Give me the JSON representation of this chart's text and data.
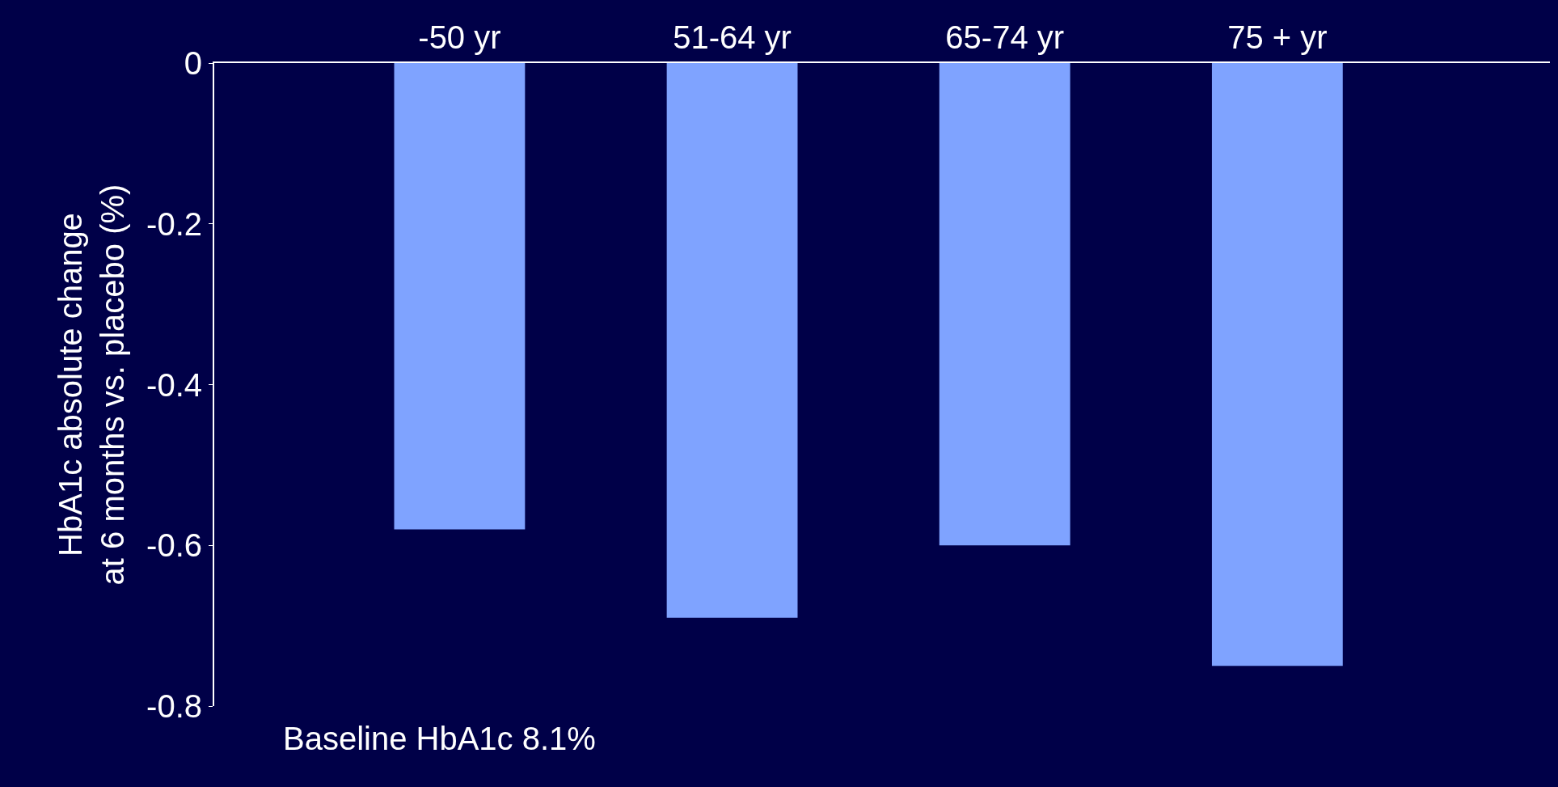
{
  "chart_data": {
    "type": "bar",
    "ylabel": "HbA1c absolute change\nat 6 months vs. placebo (%)",
    "categories": [
      "-50 yr",
      "51-64 yr",
      "65-74 yr",
      "75 + yr"
    ],
    "values": [
      -0.58,
      -0.69,
      -0.6,
      -0.75
    ],
    "color": "#7fa3ff",
    "ylim": [
      -0.8,
      0
    ],
    "yticks": [
      0,
      -0.2,
      -0.4,
      -0.6,
      -0.8
    ],
    "grid": false,
    "legend": false,
    "annotations": [
      "Baseline HbA1c 8.1%"
    ]
  }
}
